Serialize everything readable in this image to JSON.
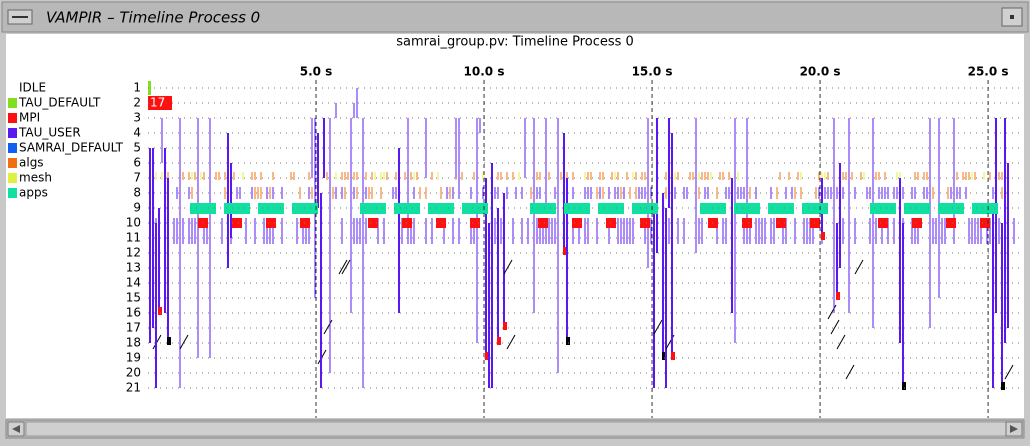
{
  "window": {
    "title": "VAMPIR – Timeline Process 0"
  },
  "timeline": {
    "title": "samrai_group.pv: Timeline Process 0",
    "legend": [
      {
        "name": "IDLE"
      },
      {
        "name": "TAU_DEFAULT",
        "color": "#7fe020"
      },
      {
        "name": "MPI",
        "color": "#ff1010"
      },
      {
        "name": "TAU_USER",
        "color": "#5a18f0"
      },
      {
        "name": "SAMRAI_DEFAULT",
        "color": "#1060f0"
      },
      {
        "name": "algs",
        "color": "#f07010"
      },
      {
        "name": "mesh",
        "color": "#e0f040"
      },
      {
        "name": "apps",
        "color": "#10e0a0"
      }
    ],
    "xlim": [
      0,
      25.95
    ],
    "xticks": [
      {
        "value": 5,
        "label": "5.0 s"
      },
      {
        "value": 10,
        "label": "10.0 s"
      },
      {
        "value": 15,
        "label": "15.0 s"
      },
      {
        "value": 20,
        "label": "20.0 s"
      },
      {
        "value": 25,
        "label": "25.0 s"
      }
    ],
    "rows": [
      1,
      2,
      3,
      4,
      5,
      6,
      7,
      8,
      9,
      10,
      11,
      12,
      13,
      14,
      15,
      16,
      17,
      18,
      19,
      20,
      21
    ],
    "highlight": {
      "label": "17"
    }
  }
}
